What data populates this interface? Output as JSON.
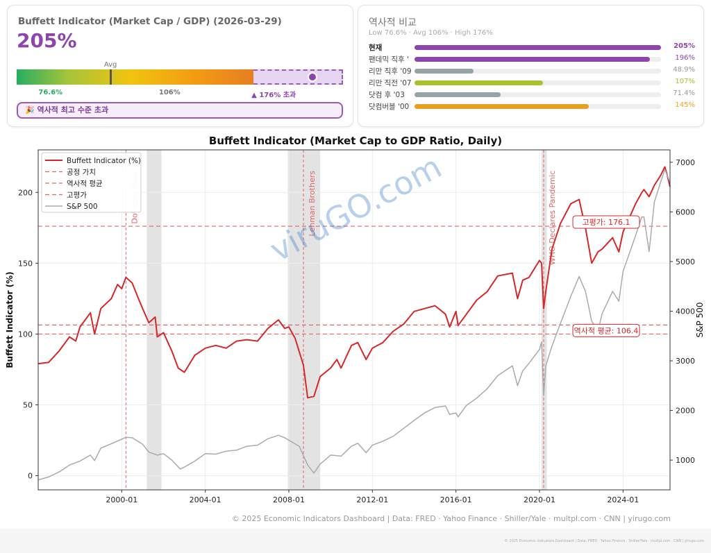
{
  "card": {
    "title": "Buffett Indicator (Market Cap / GDP) (2026-03-29)",
    "value_text": "205%",
    "value": 205,
    "gauge": {
      "min_label": "76.6%",
      "avg_label": "106%",
      "avg_marker": "Avg",
      "high_label": "▲ 176% 초과",
      "low": 76.6,
      "avg": 106,
      "high": 176,
      "current": 205
    },
    "alert": "🎉 역사적 최고 수준 초과"
  },
  "comparison": {
    "title": "역사적 비교",
    "subtitle": "Low 76.6% · Avg 106% · High 176%",
    "rows": [
      {
        "label": "현재",
        "value": 205,
        "text": "205%",
        "color": "#8e44ad"
      },
      {
        "label": "팬데믹 직후 '",
        "value": 196,
        "text": "196%",
        "color": "#8e44ad"
      },
      {
        "label": "리만 직후 '09",
        "value": 48.9,
        "text": "48.9%",
        "color": "#95a5a6"
      },
      {
        "label": "리만 직전 '07",
        "value": 107,
        "text": "107%",
        "color": "#a8c22a"
      },
      {
        "label": "닷컴 후 '03",
        "value": 71.4,
        "text": "71.4%",
        "color": "#95a5a6"
      },
      {
        "label": "닷컴버블 '00",
        "value": 145,
        "text": "145%",
        "color": "#e9a020"
      }
    ]
  },
  "chart_data": {
    "type": "line",
    "title": "Buffett Indicator (Market Cap to GDP Ratio, Daily)",
    "ylabel": "Buffett Indicator (%)",
    "y2label": "S&P 500",
    "xlim": [
      1996.0,
      2026.25
    ],
    "ylim": [
      -10,
      230
    ],
    "y2lim": [
      400,
      7250
    ],
    "x_ticks": [
      "2000-01",
      "2004-01",
      "2008-01",
      "2012-01",
      "2016-01",
      "2020-01",
      "2024-01"
    ],
    "y_ticks": [
      0,
      50,
      100,
      150,
      200
    ],
    "y2_ticks": [
      1000,
      2000,
      3000,
      4000,
      5000,
      6000,
      7000
    ],
    "grid": true,
    "legend_position": "top-left",
    "legend": [
      "Buffett Indicator (%)",
      "공정 가치",
      "역사적 평균",
      "고평가",
      "S&P 500"
    ],
    "hlines": [
      {
        "y": 100,
        "label": ""
      },
      {
        "y": 106.4,
        "label": "역사적 평균: 106.4"
      },
      {
        "y": 176.1,
        "label": "고평가: 176.1"
      }
    ],
    "events": [
      {
        "x": 2000.2,
        "label": "Dot-com Peak"
      },
      {
        "x": 2008.7,
        "label": "Lehman Brothers"
      },
      {
        "x": 2020.2,
        "label": "WHO Declares Pandemic"
      }
    ],
    "recessions": [
      [
        2001.2,
        2001.9
      ],
      [
        2007.95,
        2009.5
      ],
      [
        2020.1,
        2020.35
      ]
    ],
    "series": [
      {
        "name": "Buffett Indicator (%)",
        "color": "#d62728",
        "x": [
          1996.0,
          1996.5,
          1997.0,
          1997.5,
          1997.8,
          1998.0,
          1998.5,
          1998.7,
          1999.0,
          1999.5,
          1999.8,
          2000.0,
          2000.2,
          2000.5,
          2000.8,
          2001.0,
          2001.3,
          2001.6,
          2001.7,
          2002.0,
          2002.4,
          2002.7,
          2002.8,
          2003.0,
          2003.5,
          2004.0,
          2004.5,
          2005.0,
          2005.5,
          2006.0,
          2006.5,
          2007.0,
          2007.5,
          2007.8,
          2008.0,
          2008.3,
          2008.7,
          2008.9,
          2009.2,
          2009.5,
          2010.0,
          2010.3,
          2010.5,
          2011.0,
          2011.3,
          2011.7,
          2012.0,
          2012.5,
          2013.0,
          2013.5,
          2014.0,
          2014.5,
          2015.0,
          2015.5,
          2015.7,
          2016.0,
          2016.1,
          2016.5,
          2017.0,
          2017.5,
          2018.0,
          2018.7,
          2018.95,
          2019.2,
          2019.5,
          2020.0,
          2020.1,
          2020.2,
          2020.3,
          2020.6,
          2021.0,
          2021.5,
          2021.9,
          2022.2,
          2022.5,
          2022.8,
          2023.0,
          2023.5,
          2023.8,
          2024.0,
          2024.3,
          2024.6,
          2024.9,
          2025.0,
          2025.25,
          2025.5,
          2025.8,
          2026.0,
          2026.1,
          2026.25
        ],
        "y": [
          79,
          80,
          88,
          98,
          95,
          105,
          115,
          100,
          118,
          125,
          135,
          132,
          140,
          136,
          125,
          118,
          108,
          112,
          98,
          101,
          88,
          76,
          75,
          73,
          85,
          90,
          92,
          90,
          95,
          96,
          95,
          104,
          110,
          104,
          105,
          97,
          78,
          55,
          56,
          70,
          76,
          82,
          76,
          92,
          94,
          82,
          90,
          94,
          102,
          107,
          116,
          118,
          120,
          114,
          105,
          116,
          106,
          114,
          124,
          130,
          141,
          143,
          125,
          138,
          140,
          152,
          150,
          118,
          130,
          160,
          178,
          192,
          195,
          175,
          150,
          158,
          160,
          168,
          158,
          172,
          182,
          192,
          200,
          202,
          197,
          205,
          212,
          218,
          213,
          204
        ]
      },
      {
        "name": "S&P 500",
        "color": "#aaaaaa",
        "x": [
          1996.0,
          1996.5,
          1997.0,
          1997.5,
          1998.0,
          1998.5,
          1998.7,
          1999.0,
          1999.5,
          2000.0,
          2000.2,
          2000.5,
          2001.0,
          2001.3,
          2001.7,
          2002.0,
          2002.4,
          2002.8,
          2003.0,
          2003.5,
          2004.0,
          2004.5,
          2005.0,
          2005.5,
          2006.0,
          2006.5,
          2007.0,
          2007.5,
          2007.8,
          2008.0,
          2008.5,
          2008.9,
          2009.2,
          2009.5,
          2010.0,
          2010.5,
          2011.0,
          2011.3,
          2011.7,
          2012.0,
          2012.5,
          2013.0,
          2013.5,
          2014.0,
          2014.5,
          2015.0,
          2015.5,
          2015.7,
          2016.0,
          2016.1,
          2016.5,
          2017.0,
          2017.5,
          2018.0,
          2018.7,
          2018.95,
          2019.2,
          2019.5,
          2020.0,
          2020.1,
          2020.2,
          2020.3,
          2020.6,
          2021.0,
          2021.5,
          2021.9,
          2022.2,
          2022.5,
          2022.8,
          2023.0,
          2023.5,
          2023.8,
          2024.0,
          2024.5,
          2024.9,
          2025.0,
          2025.25,
          2025.5,
          2025.8,
          2026.0,
          2026.25
        ],
        "y": [
          600,
          660,
          760,
          900,
          980,
          1100,
          990,
          1240,
          1330,
          1420,
          1460,
          1450,
          1320,
          1160,
          1100,
          1130,
          1000,
          820,
          860,
          980,
          1130,
          1120,
          1180,
          1200,
          1280,
          1300,
          1430,
          1500,
          1450,
          1400,
          1280,
          900,
          740,
          920,
          1100,
          1080,
          1280,
          1340,
          1150,
          1300,
          1380,
          1480,
          1640,
          1800,
          1950,
          2060,
          2090,
          1920,
          1950,
          1870,
          2100,
          2250,
          2440,
          2700,
          2900,
          2500,
          2800,
          2950,
          3230,
          3380,
          2300,
          2900,
          3300,
          3750,
          4300,
          4700,
          4400,
          3800,
          3600,
          3950,
          4400,
          4200,
          4800,
          5400,
          5900,
          5900,
          5200,
          6200,
          6600,
          6850,
          6600
        ]
      }
    ]
  },
  "footer": {
    "source": "© 2025 Economic Indicators Dashboard  |  Data: FRED · Yahoo Finance · Shiller/Yale · multpl.com · CNN  |  yirugo.com",
    "tiny": "© 2025 Economic Indicators Dashboard  |  Data: FRED · Yahoo Finance · Shiller/Yale · multpl.com · CNN  |  yirugo.com"
  },
  "watermark": "viruGO.com"
}
